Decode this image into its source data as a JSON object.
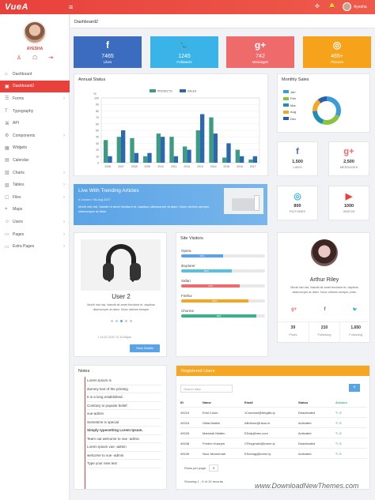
{
  "topbar": {
    "logo": "VueA",
    "user": "Ayesha",
    "menu_icon": "≡",
    "grid_icon": "✣",
    "bell_icon": "🔔",
    "notif_count": "3"
  },
  "sidebar": {
    "name": "AYESHA",
    "icons": [
      "♙",
      "☖",
      "⇥"
    ],
    "items": [
      {
        "label": "Dashboard",
        "icon": "⌂",
        "chevron": ""
      },
      {
        "label": "Dashboard2",
        "icon": "▣",
        "chevron": ""
      },
      {
        "label": "Forms",
        "icon": "☰",
        "chevron": "›"
      },
      {
        "label": "Typography",
        "icon": "T",
        "chevron": ""
      },
      {
        "label": "API",
        "icon": "⌘",
        "chevron": ""
      },
      {
        "label": "Components",
        "icon": "⚙",
        "chevron": "›"
      },
      {
        "label": "Widgets",
        "icon": "▦",
        "chevron": ""
      },
      {
        "label": "Calendar",
        "icon": "▤",
        "chevron": ""
      },
      {
        "label": "Charts",
        "icon": "▥",
        "chevron": "›"
      },
      {
        "label": "Tables",
        "icon": "▧",
        "chevron": "›"
      },
      {
        "label": "Files",
        "icon": "▢",
        "chevron": "›"
      },
      {
        "label": "Maps",
        "icon": "⌖",
        "chevron": ""
      },
      {
        "label": "Users",
        "icon": "☺",
        "chevron": "›"
      },
      {
        "label": "Pages",
        "icon": "▭",
        "chevron": "›"
      },
      {
        "label": "Extra Pages",
        "icon": "▭",
        "chevron": "›"
      }
    ],
    "active_index": 1
  },
  "breadcrumb": "Dashboard2",
  "tiles": [
    {
      "icon": "f",
      "value": "7465",
      "label": "Likes",
      "color": "#3b6cc0"
    },
    {
      "icon": "🐦",
      "value": "1245",
      "label": "Followers",
      "color": "#3ab4e8"
    },
    {
      "icon": "g+",
      "value": "742",
      "label": "Messages",
      "color": "#ef6a6a"
    },
    {
      "icon": "◎",
      "value": "465+",
      "label": "Pictures",
      "color": "#f6a21a"
    }
  ],
  "annual_status": {
    "title": "Annual Status"
  },
  "chart_data": {
    "type": "bar",
    "title": "Annual Status",
    "categories": [
      "2006",
      "2007",
      "2008",
      "2009",
      "2010",
      "2011",
      "2012",
      "2013",
      "2014",
      "2015",
      "2016",
      "2017"
    ],
    "ylabel": "%",
    "ylim": [
      0,
      100
    ],
    "yticks": [
      0,
      10,
      20,
      30,
      40,
      50,
      60,
      70,
      80,
      90,
      100
    ],
    "legend_position": "top-center",
    "series": [
      {
        "name": "PROJECTS",
        "color": "#3d9b82",
        "values": [
          35,
          40,
          38,
          10,
          45,
          40,
          25,
          50,
          70,
          8,
          20,
          5
        ]
      },
      {
        "name": "SALES",
        "color": "#2c68b1",
        "values": [
          10,
          50,
          15,
          15,
          40,
          10,
          20,
          75,
          45,
          30,
          10,
          10
        ]
      }
    ]
  },
  "monthly_sales": {
    "title": "Monthly Sales",
    "legend": [
      {
        "label": "Jan",
        "color": "#3a9bd9"
      },
      {
        "label": "Feb",
        "color": "#8ac43f"
      },
      {
        "label": "Mar",
        "color": "#1f8fb8"
      },
      {
        "label": "Aug",
        "color": "#f5a623"
      },
      {
        "label": "Dec",
        "color": "#2d5fa8"
      }
    ]
  },
  "small_tiles": [
    {
      "icon": "f",
      "value": "1,500",
      "label": "LIKES",
      "color": "#3b6cc0"
    },
    {
      "icon": "g+",
      "value": "2,500",
      "label": "MESSAGES",
      "color": "#ef6a6a"
    },
    {
      "icon": "◎",
      "value": "800",
      "label": "PICTURES",
      "color": "#3ab4e8"
    },
    {
      "icon": "▶",
      "value": "1000",
      "label": "VIDEOS",
      "color": "#e8413c"
    }
  ],
  "trending": {
    "title": "Live With Trending Articles",
    "meta": "♦ London   ▪ 06,Aug 2017",
    "text": "Morbi nisi nisi, blandit ut amet tincidunt et, dapibus ullamcorper at diam. Nunc ultrices semper ullamcorper at diam."
  },
  "user2": {
    "name": "User 2",
    "text": "Morbi nisi nisi, blandit sit amet tincidunt et, dapibus ullamcorper at diam. Nunc ultrices semper",
    "meta": "▪ 24-07-2017  ◷ 10:45pm",
    "button": "View Details"
  },
  "site_visitors": {
    "title": "Site Visitors",
    "rows": [
      {
        "label": "Opera",
        "value": "50%",
        "fraction": 0.5,
        "color": "#5aa3e6"
      },
      {
        "label": "iExplorer",
        "value": "60%",
        "fraction": 0.6,
        "color": "#5bc0de"
      },
      {
        "label": "Safari",
        "value": "70%",
        "fraction": 0.7,
        "color": "#ef6a6a"
      },
      {
        "label": "Firefox",
        "value": "80%",
        "fraction": 0.8,
        "color": "#f5a623"
      },
      {
        "label": "Chorme",
        "value": "90%",
        "fraction": 0.9,
        "color": "#3ab18d"
      }
    ]
  },
  "arthur": {
    "name": "Arthur Riley",
    "text": "Morbi nisi nisi, blandit sit amet tincidunt et, dapibus ullamcorper at diam. Nunc ultrices semper polla.",
    "social": [
      "g+",
      "f",
      "🐦"
    ],
    "stats": [
      {
        "value": "39",
        "label": "Posts"
      },
      {
        "value": "210",
        "label": "Following"
      },
      {
        "value": "1,650",
        "label": "Following"
      }
    ]
  },
  "notes": {
    "title": "Notes",
    "items": [
      {
        "text": "Lorem Ipsum is",
        "bold": false
      },
      {
        "text": "dummy text of the printing",
        "bold": false
      },
      {
        "text": "It is a long established.",
        "bold": false
      },
      {
        "text": "Contrary to popular belief.",
        "bold": false
      },
      {
        "text": "vue-admin",
        "bold": false
      },
      {
        "text": "Sometime is special",
        "bold": false
      },
      {
        "text": "Simply typesetting Lorem Ipsum.",
        "bold": true
      },
      {
        "text": "Team out welcome to vue -admin",
        "bold": false
      },
      {
        "text": "Lorem Ipsum vue -admin",
        "bold": false
      },
      {
        "text": "welcome to vue -admin",
        "bold": false
      },
      {
        "text": "Type your new text",
        "bold": false
      }
    ]
  },
  "registered": {
    "title": "Registered Users",
    "search_placeholder": "Search data",
    "plus": "+",
    "columns": [
      "ID",
      "Name",
      "Email",
      "Status",
      "Actions"
    ],
    "rows": [
      [
        "49215",
        "Emil Colon",
        "JCrannski@fringilla.ly",
        "Deactivated",
        "✎ ⊘"
      ],
      [
        "49216",
        "Hilda Mathis",
        "ABothun@risus.io",
        "Activated",
        "✎ ⊘"
      ],
      [
        "49226",
        "Marshall Matten",
        "EDaly@nec.com",
        "Activated",
        "✎ ⊘"
      ],
      [
        "49248",
        "Fredric Huseyin",
        "CFitzgerald@lorem.ly",
        "Deactivated",
        "✎ ⊘"
      ],
      [
        "49249",
        "Noor Mccimmah",
        "ESchrag@lorem.ly",
        "Activated",
        "✎ ⊘"
      ]
    ],
    "rows_per_page_label": "Rows per page:",
    "rows_per_page": "5",
    "showing": "Showing 1 - 5 of 10 records"
  },
  "watermark": "www.DownloadNewThemes.com"
}
